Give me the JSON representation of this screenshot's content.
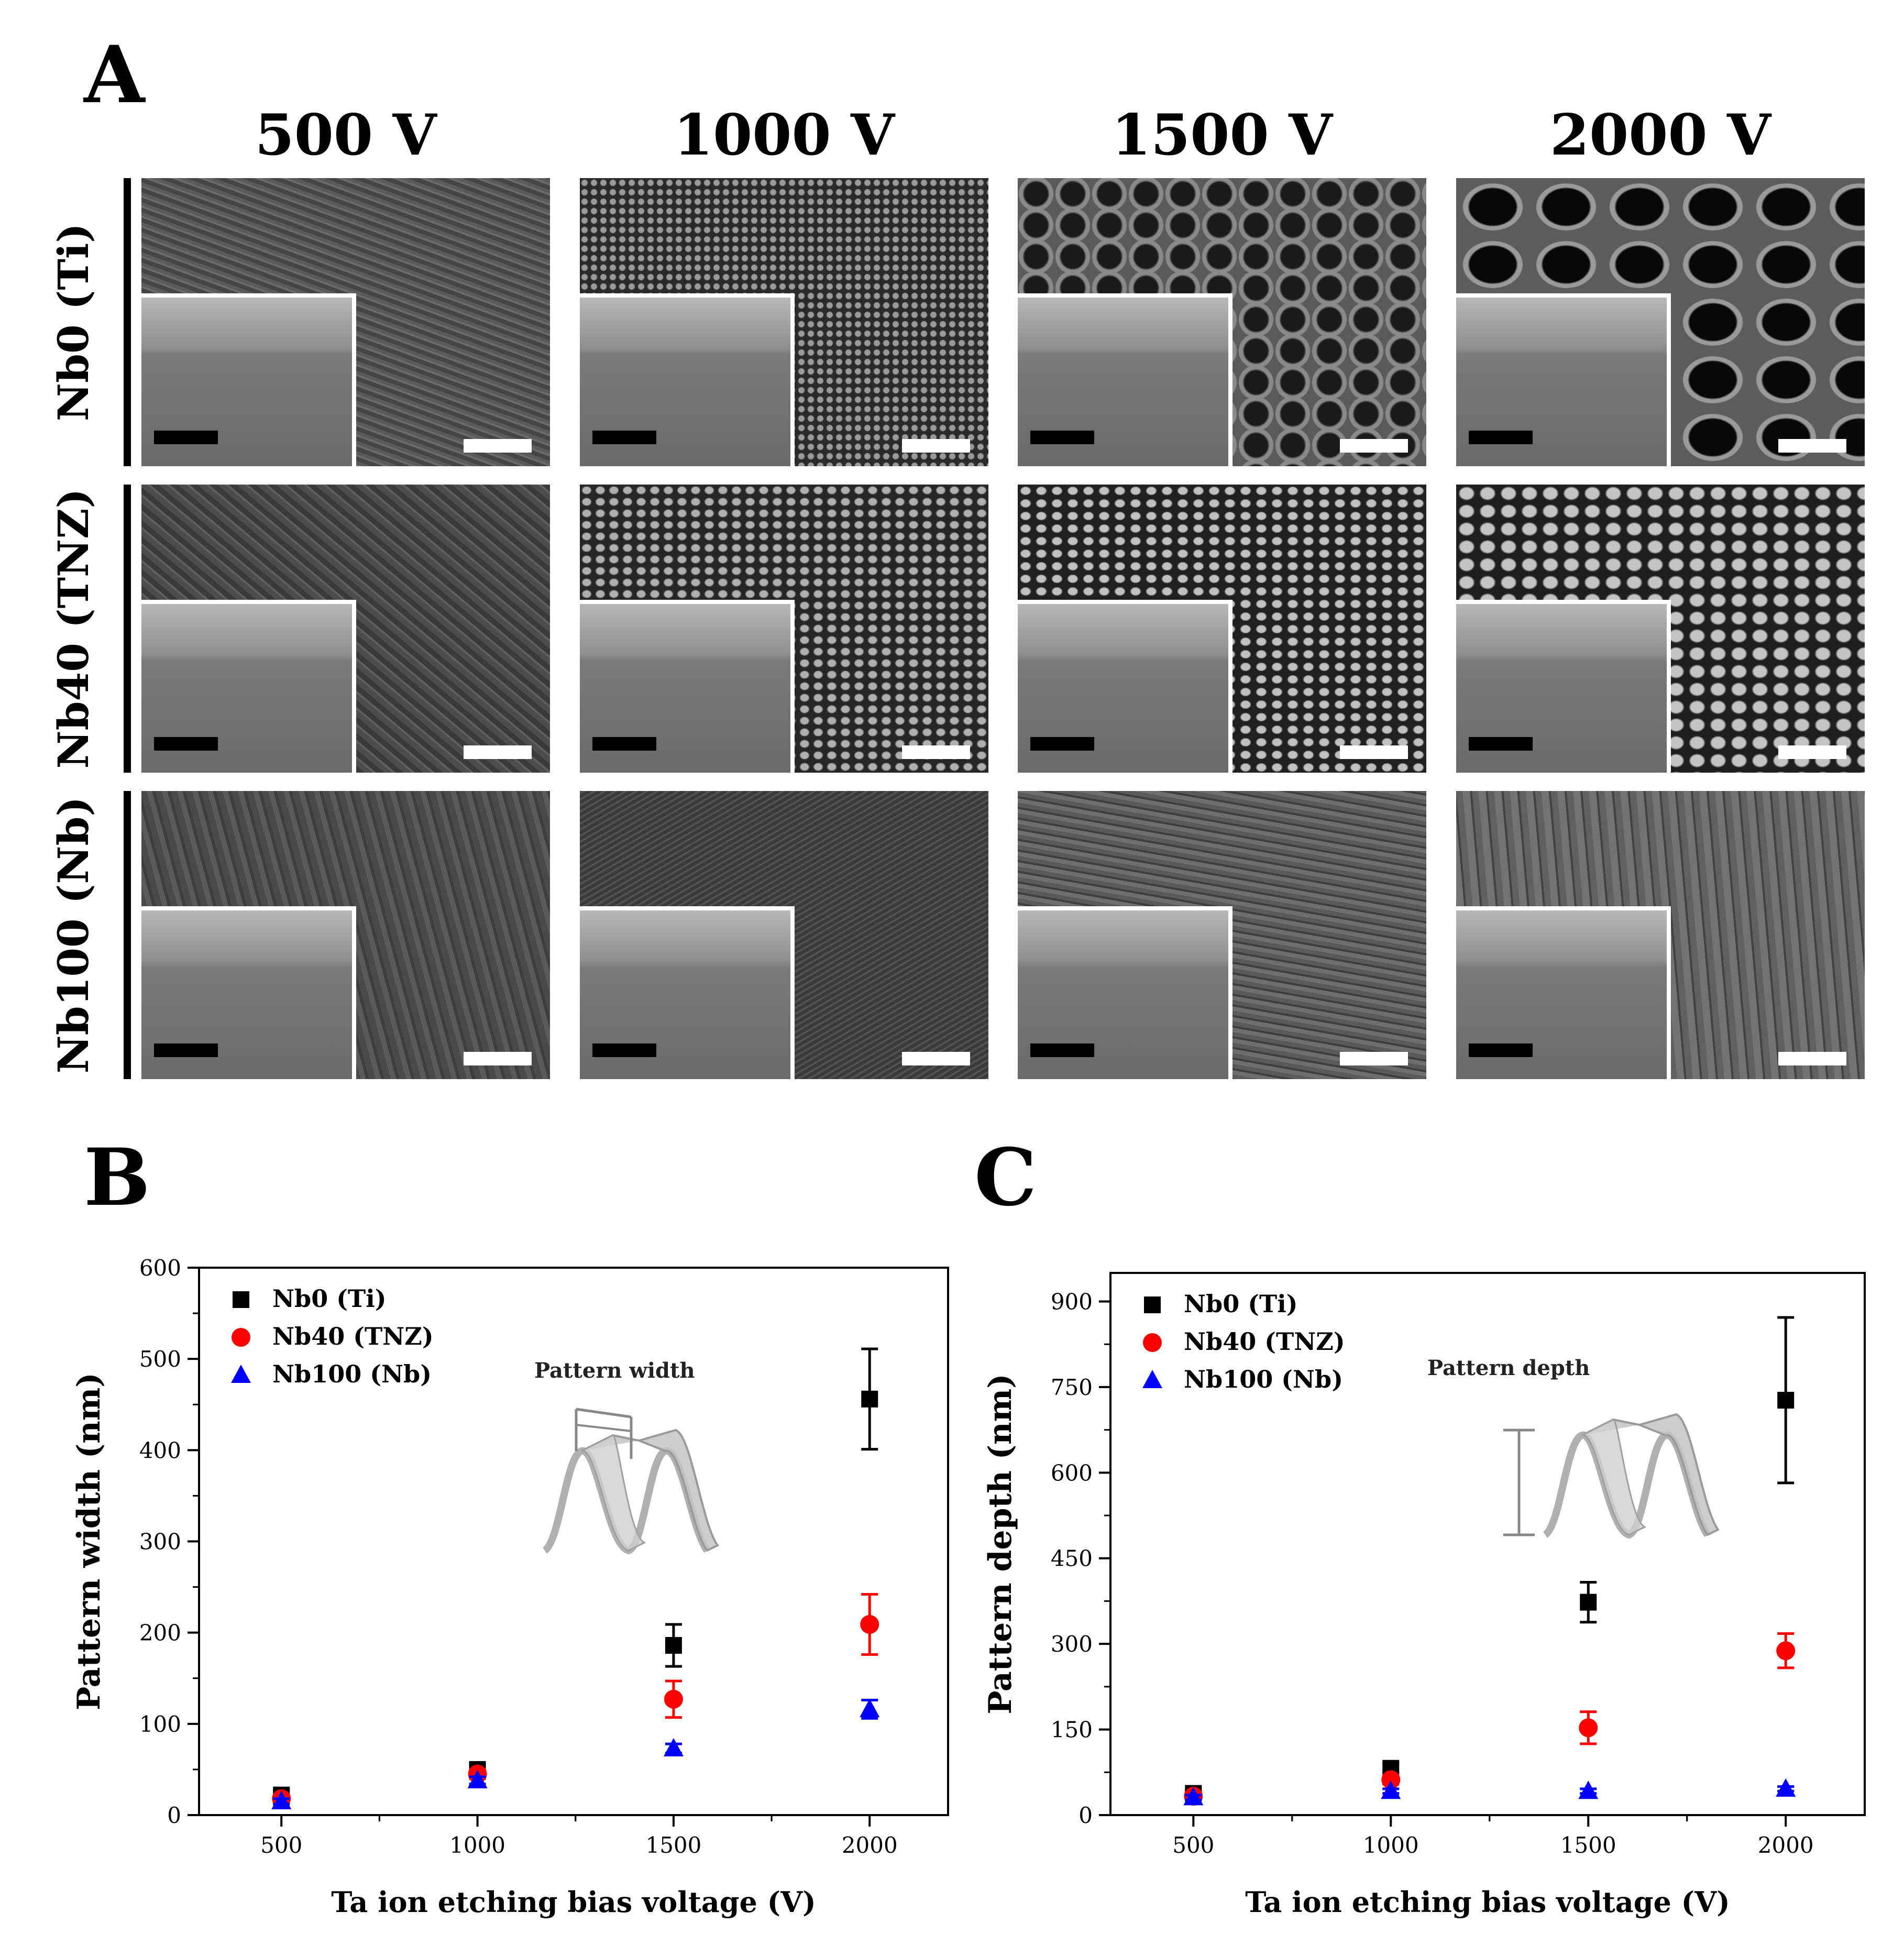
{
  "panelA": {
    "letter": "A",
    "columns": [
      "500 V",
      "1000 V",
      "1500 V",
      "2000 V"
    ],
    "rows": [
      "Nb0 (Ti)",
      "Nb40 (TNZ)",
      "Nb100 (Nb)"
    ]
  },
  "chart_data": [
    {
      "panel": "B",
      "type": "scatter",
      "xlabel": "Ta ion etching bias voltage (V)",
      "ylabel": "Pattern width (nm)",
      "xticks": [
        500,
        1000,
        1500,
        2000
      ],
      "yticks": [
        0,
        100,
        200,
        300,
        400,
        500,
        600
      ],
      "xlim": [
        290,
        2200
      ],
      "ylim": [
        0,
        600
      ],
      "inset_label": "Pattern width",
      "legend_position": "top-left",
      "series": [
        {
          "name": "Nb0 (Ti)",
          "color": "#000000",
          "marker": "square",
          "x": [
            500,
            1000,
            1500,
            2000
          ],
          "y": [
            22,
            50,
            186,
            456
          ],
          "err": [
            5,
            5,
            23,
            55
          ]
        },
        {
          "name": "Nb40 (TNZ)",
          "color": "#ff0000",
          "marker": "circle",
          "x": [
            500,
            1000,
            1500,
            2000
          ],
          "y": [
            18,
            45,
            127,
            209
          ],
          "err": [
            4,
            5,
            20,
            33
          ]
        },
        {
          "name": "Nb100 (Nb)",
          "color": "#0000ff",
          "marker": "triangle",
          "x": [
            500,
            1000,
            1500,
            2000
          ],
          "y": [
            15,
            38,
            73,
            116
          ],
          "err": [
            3,
            4,
            5,
            10
          ]
        }
      ]
    },
    {
      "panel": "C",
      "type": "scatter",
      "xlabel": "Ta ion etching bias voltage (V)",
      "ylabel": "Pattern depth (nm)",
      "xticks": [
        500,
        1000,
        1500,
        2000
      ],
      "yticks": [
        0,
        150,
        300,
        450,
        600,
        750,
        900
      ],
      "xlim": [
        290,
        2200
      ],
      "ylim": [
        0,
        950
      ],
      "inset_label": "Pattern depth",
      "legend_position": "top-left",
      "series": [
        {
          "name": "Nb0 (Ti)",
          "color": "#000000",
          "marker": "square",
          "x": [
            500,
            1000,
            1500,
            2000
          ],
          "y": [
            38,
            82,
            373,
            727
          ],
          "err": [
            5,
            8,
            35,
            145
          ]
        },
        {
          "name": "Nb40 (TNZ)",
          "color": "#ff0000",
          "marker": "circle",
          "x": [
            500,
            1000,
            1500,
            2000
          ],
          "y": [
            33,
            62,
            153,
            288
          ],
          "err": [
            5,
            8,
            28,
            30
          ]
        },
        {
          "name": "Nb100 (Nb)",
          "color": "#0000ff",
          "marker": "triangle",
          "x": [
            500,
            1000,
            1500,
            2000
          ],
          "y": [
            31,
            42,
            42,
            46
          ],
          "err": [
            4,
            4,
            4,
            4
          ]
        }
      ]
    }
  ]
}
